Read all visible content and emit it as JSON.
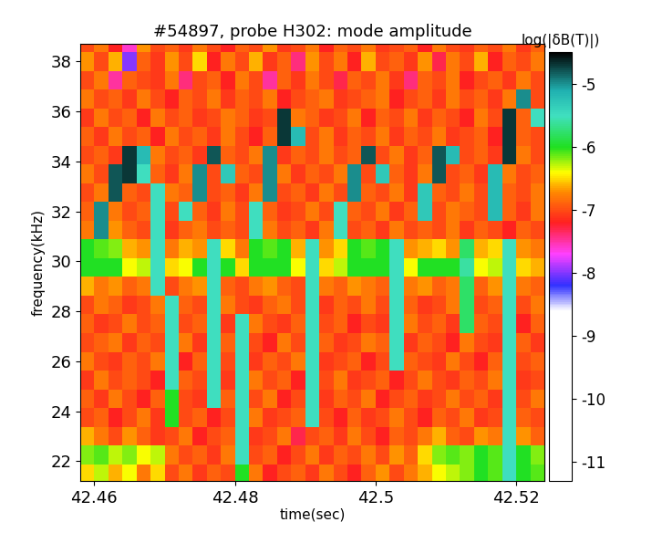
{
  "chart_data": {
    "type": "heatmap",
    "title": "#54897, probe H302: mode amplitude",
    "x_label": "time(sec)",
    "y_label": "frequency(kHz)",
    "colorbar_label": "log(|δB(T)|)",
    "x": [
      42.459,
      42.461,
      42.463,
      42.465,
      42.467,
      42.469,
      42.471,
      42.473,
      42.475,
      42.477,
      42.479,
      42.481,
      42.483,
      42.485,
      42.487,
      42.489,
      42.491,
      42.493,
      42.495,
      42.497,
      42.499,
      42.501,
      42.503,
      42.505,
      42.507,
      42.509,
      42.511,
      42.513,
      42.515,
      42.517,
      42.519,
      42.521,
      42.523
    ],
    "y": [
      21.5,
      22.25,
      23.0,
      23.75,
      24.5,
      25.25,
      26.0,
      26.75,
      27.5,
      28.25,
      29.0,
      29.75,
      30.5,
      31.25,
      32.0,
      32.75,
      33.5,
      34.25,
      35.0,
      35.75,
      36.5,
      37.25,
      38.0,
      38.75
    ],
    "values": [
      [
        -6.5,
        -6.3,
        -6.6,
        -6.4,
        -6.8,
        -6.5,
        -7,
        -6.8,
        -7.1,
        -6.9,
        -7,
        -6,
        -6.8,
        -7.2,
        -7,
        -6.9,
        -7.1,
        -6.8,
        -7,
        -7.2,
        -6.9,
        -6.7,
        -7,
        -6.8,
        -6.6,
        -6.4,
        -6.3,
        -6.2,
        -6,
        -6.1,
        -5.5,
        -6,
        -6.1
      ],
      [
        -6.2,
        -6.1,
        -6.3,
        -6.2,
        -6.4,
        -6.3,
        -6.8,
        -7,
        -6.9,
        -7.1,
        -6.8,
        -5.5,
        -7,
        -6.9,
        -7.2,
        -7,
        -6.8,
        -7.1,
        -6.9,
        -7,
        -6.8,
        -7,
        -6.7,
        -6.9,
        -6.5,
        -6.2,
        -6.1,
        -6.2,
        -6,
        -6.1,
        -5.5,
        -6,
        -6.2
      ],
      [
        -6.6,
        -6.8,
        -7,
        -6.7,
        -6.9,
        -7.1,
        -7,
        -6.8,
        -7.2,
        -7,
        -6.9,
        -5.5,
        -7.1,
        -7,
        -6.8,
        -7.3,
        -7,
        -6.9,
        -7.1,
        -6.8,
        -7,
        -7.2,
        -6.9,
        -7,
        -6.8,
        -6.6,
        -6.9,
        -7,
        -6.7,
        -6.8,
        -5.5,
        -6.7,
        -6.9
      ],
      [
        -7,
        -6.9,
        -7.2,
        -7,
        -6.8,
        -7.1,
        -6,
        -7,
        -6.9,
        -7.2,
        -7,
        -5.5,
        -6.8,
        -7.1,
        -7,
        -6.9,
        -5.5,
        -7,
        -7.2,
        -6.9,
        -7.1,
        -7,
        -6.8,
        -7,
        -7.2,
        -6.9,
        -7,
        -6.8,
        -7.1,
        -7,
        -5.5,
        -6.9,
        -7
      ],
      [
        -6.9,
        -7.1,
        -6.8,
        -7,
        -7.2,
        -6.9,
        -6,
        -7,
        -7.1,
        -5.5,
        -6.9,
        -5.5,
        -7,
        -6.8,
        -7.2,
        -7,
        -5.5,
        -7.1,
        -6.9,
        -7,
        -6.8,
        -7.2,
        -7,
        -6.9,
        -7.1,
        -7,
        -6.8,
        -7,
        -6.9,
        -7.1,
        -5.5,
        -7,
        -6.8
      ],
      [
        -7.1,
        -6.8,
        -7,
        -6.9,
        -7,
        -7.2,
        -5.5,
        -6.9,
        -7,
        -5.5,
        -7.1,
        -5.5,
        -6.8,
        -7,
        -6.9,
        -7.2,
        -5.5,
        -7,
        -6.8,
        -7.1,
        -7,
        -6.9,
        -7.2,
        -7,
        -6.8,
        -7,
        -7.1,
        -6.9,
        -7,
        -6.8,
        -5.5,
        -7.1,
        -7
      ],
      [
        -6.8,
        -7,
        -7.1,
        -6.9,
        -7,
        -6.8,
        -5.5,
        -7.2,
        -6.9,
        -5.5,
        -7,
        -5.5,
        -7.1,
        -6.9,
        -7,
        -6.8,
        -5.5,
        -7.1,
        -7,
        -6.9,
        -7.2,
        -7,
        -5.5,
        -6.9,
        -7,
        -7.1,
        -6.8,
        -7,
        -7.2,
        -6.9,
        -5.5,
        -7,
        -6.9
      ],
      [
        -7,
        -6.9,
        -6.8,
        -7.1,
        -6.9,
        -7,
        -5.5,
        -6.8,
        -7.1,
        -5.5,
        -6.9,
        -5.5,
        -7,
        -7.2,
        -6.8,
        -7,
        -5.5,
        -6.9,
        -7.1,
        -7,
        -6.8,
        -6.9,
        -5.5,
        -7.1,
        -6.9,
        -7,
        -7.2,
        -6.8,
        -7,
        -7.1,
        -5.5,
        -6.9,
        -7.1
      ],
      [
        -6.9,
        -7.1,
        -7,
        -6.8,
        -7,
        -6.9,
        -5.5,
        -7,
        -6.9,
        -5.5,
        -7.1,
        -5.5,
        -6.8,
        -7,
        -7.1,
        -6.9,
        -5.5,
        -7,
        -6.9,
        -7.2,
        -7,
        -7.1,
        -5.5,
        -6.8,
        -7,
        -6.9,
        -7.1,
        -5.8,
        -6.9,
        -7,
        -5.5,
        -7.2,
        -6.9
      ],
      [
        -7,
        -6.8,
        -6.9,
        -7.1,
        -7,
        -6.8,
        -5.5,
        -6.9,
        -7,
        -5.5,
        -6.8,
        -7,
        -7.1,
        -6.9,
        -6.8,
        -7,
        -5.5,
        -7.1,
        -6.9,
        -7,
        -6.8,
        -7,
        -5.5,
        -6.9,
        -7.1,
        -7,
        -6.8,
        -5.8,
        -7,
        -6.9,
        -5.5,
        -7,
        -6.8
      ],
      [
        -6.6,
        -6.8,
        -6.7,
        -6.9,
        -6.8,
        -5.5,
        -7,
        -6.8,
        -6.7,
        -5.5,
        -6.9,
        -7,
        -6.8,
        -6.7,
        -6.9,
        -7,
        -5.5,
        -6.8,
        -6.9,
        -6.7,
        -6.8,
        -6.9,
        -5.5,
        -6.8,
        -6.7,
        -6.9,
        -6.8,
        -5.8,
        -6.9,
        -6.7,
        -5.5,
        -6.8,
        -6.9
      ],
      [
        -6,
        -6,
        -6,
        -6.4,
        -6.3,
        -5.5,
        -6.5,
        -6.4,
        -6,
        -5.5,
        -6,
        -6.5,
        -6,
        -6,
        -6,
        -6.4,
        -5.5,
        -6.5,
        -6.3,
        -6,
        -6,
        -6,
        -5.5,
        -6.4,
        -6,
        -6,
        -6,
        -5.6,
        -6.4,
        -6.3,
        -5.5,
        -6.5,
        -6.6
      ],
      [
        -6,
        -6.1,
        -6.2,
        -6.6,
        -6.7,
        -5.5,
        -6.8,
        -6.6,
        -6.7,
        -5.5,
        -6.5,
        -6.8,
        -6,
        -6.1,
        -6,
        -6.6,
        -5.5,
        -6.7,
        -6.5,
        -6,
        -6.1,
        -6,
        -5.5,
        -6.7,
        -6.6,
        -6.5,
        -6.7,
        -5.8,
        -6.6,
        -6.5,
        -5.5,
        -6.7,
        -6.8
      ],
      [
        -6.8,
        -5,
        -6.7,
        -6.9,
        -7,
        -5.5,
        -7.1,
        -6.9,
        -6.8,
        -7,
        -6.9,
        -7,
        -5.5,
        -6.8,
        -7,
        -6.9,
        -7.1,
        -6.8,
        -5.5,
        -7,
        -6.9,
        -7.1,
        -6.8,
        -7,
        -6.9,
        -7,
        -6.8,
        -7.1,
        -6.9,
        -7,
        -7.2,
        -6.9,
        -7
      ],
      [
        -6.9,
        -5,
        -6.8,
        -7,
        -6.9,
        -5.5,
        -7,
        -5.5,
        -6.9,
        -7.1,
        -6.8,
        -7,
        -5.5,
        -6.9,
        -7.1,
        -7,
        -6.8,
        -7,
        -5.5,
        -6.9,
        -7,
        -6.8,
        -7.1,
        -6.9,
        -5.3,
        -7,
        -6.8,
        -6.9,
        -7,
        -5.2,
        -6.9,
        -7.1,
        -6.8
      ],
      [
        -7,
        -6.8,
        -4.8,
        -6.9,
        -7,
        -5.5,
        -6.8,
        -6.9,
        -5,
        -7,
        -6.9,
        -7.1,
        -6.8,
        -5,
        -7,
        -6.9,
        -7.1,
        -6.8,
        -7,
        -5,
        -6.9,
        -7,
        -6.8,
        -7.1,
        -5.3,
        -6.9,
        -7,
        -6.8,
        -7,
        -5.2,
        -6.9,
        -7,
        -6.8
      ],
      [
        -6.8,
        -7,
        -4.8,
        -4.7,
        -5.5,
        -6.9,
        -7.1,
        -6.8,
        -5,
        -7,
        -5.3,
        -6.9,
        -7,
        -5,
        -6.8,
        -7.1,
        -6.9,
        -7,
        -6.8,
        -5,
        -7,
        -5.3,
        -6.9,
        -7.1,
        -6.8,
        -4.8,
        -7,
        -6.9,
        -7.1,
        -5.2,
        -6.8,
        -7,
        -6.9
      ],
      [
        -7,
        -6.9,
        -7.1,
        -4.7,
        -5.2,
        -6.8,
        -7,
        -6.9,
        -7.1,
        -4.8,
        -6.9,
        -7,
        -6.8,
        -5,
        -7.1,
        -6.9,
        -7,
        -6.8,
        -7,
        -6.9,
        -4.8,
        -7,
        -6.8,
        -7.1,
        -6.9,
        -4.8,
        -5.2,
        -7,
        -6.9,
        -7.1,
        -4.7,
        -6.8,
        -7
      ],
      [
        -6.9,
        -7.1,
        -6.8,
        -7,
        -6.9,
        -7.2,
        -6.8,
        -7,
        -6.9,
        -7.1,
        -6.8,
        -7,
        -7.2,
        -6.9,
        -4.7,
        -5.2,
        -7,
        -6.8,
        -7.1,
        -6.9,
        -7,
        -6.8,
        -7.1,
        -6.9,
        -7,
        -6.8,
        -7.1,
        -7,
        -6.9,
        -7.2,
        -4.7,
        -6.9,
        -7
      ],
      [
        -7.1,
        -6.8,
        -7,
        -6.9,
        -7.2,
        -6.8,
        -7,
        -6.9,
        -7.1,
        -7,
        -6.8,
        -6.9,
        -7.1,
        -7,
        -4.7,
        -6.8,
        -6.9,
        -7.1,
        -7,
        -6.8,
        -7.2,
        -6.9,
        -7,
        -6.8,
        -7.1,
        -6.9,
        -7,
        -7.2,
        -6.8,
        -7,
        -4.7,
        -6.9,
        -5.5
      ],
      [
        -6.8,
        -7,
        -6.9,
        -7.1,
        -6.8,
        -7,
        -7.2,
        -6.9,
        -7,
        -6.8,
        -7.1,
        -6.9,
        -7,
        -6.8,
        -7.2,
        -7,
        -6.9,
        -6.8,
        -7.1,
        -7,
        -6.9,
        -6.8,
        -7.2,
        -7,
        -6.9,
        -7.1,
        -6.8,
        -7,
        -6.9,
        -7.1,
        -6.8,
        -5,
        -7
      ],
      [
        -7,
        -6.8,
        -7.5,
        -6.9,
        -7,
        -7.1,
        -6.8,
        -7.4,
        -7,
        -6.9,
        -7.2,
        -6.8,
        -7,
        -7.5,
        -6.9,
        -7.1,
        -6.8,
        -7,
        -7.3,
        -6.9,
        -7,
        -6.8,
        -7.1,
        -7.4,
        -6.9,
        -7,
        -6.8,
        -7.2,
        -7,
        -6.9,
        -7.1,
        -6.8,
        -7
      ],
      [
        -6.7,
        -7,
        -6.6,
        -8,
        -6.9,
        -7.1,
        -6.7,
        -7,
        -6.5,
        -7.2,
        -6.8,
        -7,
        -6.6,
        -7.1,
        -6.9,
        -7.4,
        -6.7,
        -7,
        -6.8,
        -7.2,
        -6.6,
        -7,
        -6.9,
        -7.1,
        -6.7,
        -7.3,
        -6.8,
        -7,
        -6.6,
        -7.2,
        -6.9,
        -7,
        -6.8
      ],
      [
        -7,
        -6.8,
        -7.2,
        -7.6,
        -6.7,
        -7,
        -6.9,
        -7.1,
        -6.8,
        -7,
        -7.2,
        -6.9,
        -7,
        -6.7,
        -7.1,
        -7,
        -6.8,
        -7.2,
        -6.9,
        -7,
        -6.8,
        -7.1,
        -7,
        -6.9,
        -7.2,
        -6.8,
        -7,
        -7.1,
        -6.9,
        -7,
        -6.8,
        -7.1,
        -6.9
      ]
    ],
    "xlim": [
      42.458,
      42.524
    ],
    "ylim": [
      21.2,
      38.7
    ],
    "xticks": [
      42.46,
      42.48,
      42.5,
      42.52
    ],
    "yticks": [
      22,
      24,
      26,
      28,
      30,
      32,
      34,
      36,
      38
    ],
    "colorbar_lim": [
      -11.3,
      -4.5
    ],
    "colorbar_ticks": [
      -11,
      -10,
      -9,
      -8,
      -7,
      -6,
      -5
    ]
  }
}
